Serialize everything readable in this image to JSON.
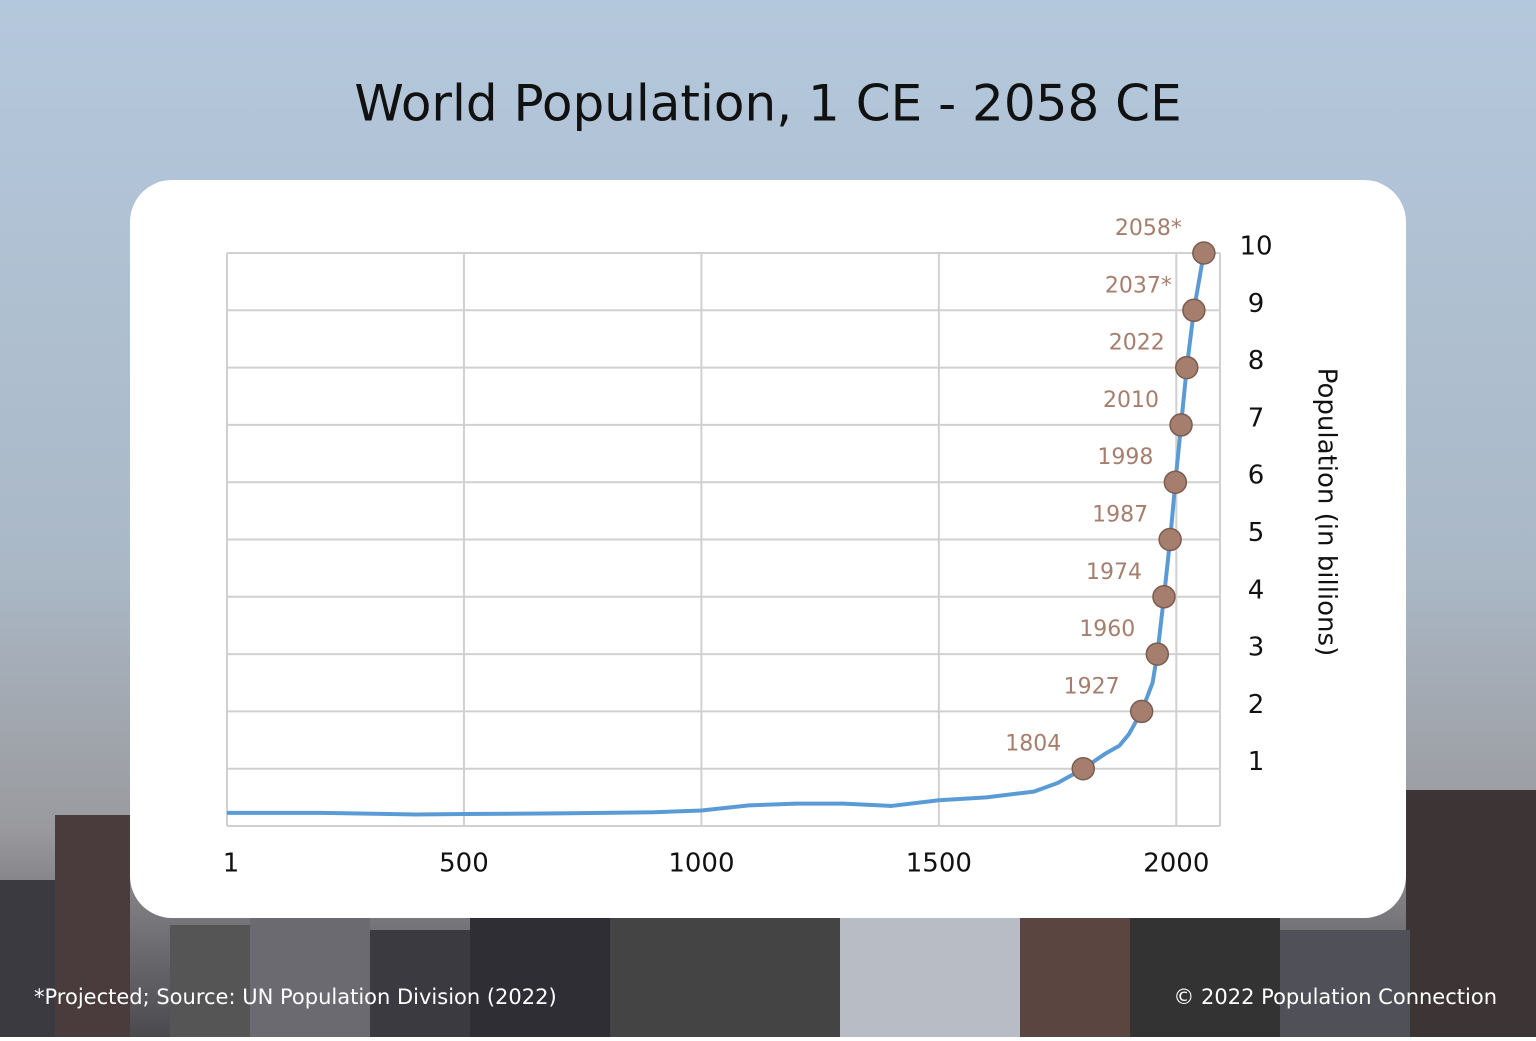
{
  "chart_data": {
    "type": "line",
    "title": "World Population, 1 CE - 2058 CE",
    "y_label": "Population (in billions)",
    "footnote": "*Projected; Source: UN Population Division (2022)",
    "credit": "© 2022 Population Connection",
    "xlim": [
      1,
      2092
    ],
    "xticks": [
      1,
      500,
      1000,
      1500,
      2000
    ],
    "ylim": [
      0,
      10
    ],
    "yticks": [
      1,
      2,
      3,
      4,
      5,
      6,
      7,
      8,
      9,
      10
    ],
    "grid": true,
    "series": [
      {
        "color": "#5b9bd5",
        "x": [
          1,
          200,
          400,
          500,
          700,
          900,
          1000,
          1100,
          1200,
          1300,
          1400,
          1500,
          1600,
          1700,
          1750,
          1804,
          1850,
          1880,
          1900,
          1927,
          1950,
          1960,
          1974,
          1987,
          1998,
          2010,
          2022,
          2037,
          2058
        ],
        "values": [
          0.23,
          0.23,
          0.2,
          0.21,
          0.22,
          0.24,
          0.27,
          0.36,
          0.39,
          0.39,
          0.35,
          0.45,
          0.5,
          0.6,
          0.75,
          1,
          1.26,
          1.4,
          1.6,
          2,
          2.5,
          3,
          4,
          5,
          6,
          7,
          8,
          9,
          10
        ]
      },
      {
        "color": "#a57e6e",
        "marker": true,
        "x": [
          1804,
          1927,
          1960,
          1974,
          1987,
          1998,
          2010,
          2022,
          2037,
          2058
        ],
        "values": [
          1,
          2,
          3,
          4,
          5,
          6,
          7,
          8,
          9,
          10
        ],
        "labels": [
          "1804",
          "1927",
          "1960",
          "1974",
          "1987",
          "1998",
          "2010",
          "2022",
          "2037*",
          "2058*"
        ]
      }
    ]
  }
}
